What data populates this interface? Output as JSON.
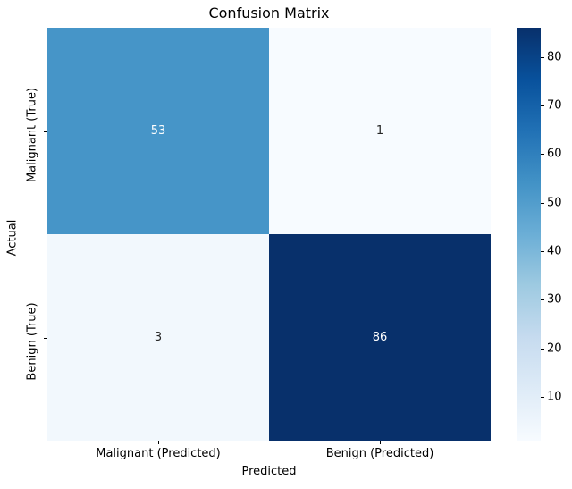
{
  "chart_data": {
    "type": "heatmap",
    "title": "Confusion Matrix",
    "xlabel": "Predicted",
    "ylabel": "Actual",
    "x_categories": [
      "Malignant (Predicted)",
      "Benign (Predicted)"
    ],
    "y_categories": [
      "Malignant (True)",
      "Benign (True)"
    ],
    "values": [
      [
        53,
        1
      ],
      [
        3,
        86
      ]
    ],
    "vmin": 1,
    "vmax": 86,
    "colormap": "Blues",
    "colorbar_ticks": [
      10,
      20,
      30,
      40,
      50,
      60,
      70,
      80
    ],
    "colorbar_position": "right",
    "grid": false,
    "cell_colors": [
      [
        "#4695c8",
        "#f7fbff"
      ],
      [
        "#f2f8fd",
        "#08306b"
      ]
    ],
    "cell_text_colors": [
      [
        "#ffffff",
        "#262626"
      ],
      [
        "#262626",
        "#ffffff"
      ]
    ],
    "colormap_stops": [
      {
        "pos": 0.0,
        "color": "#f7fbff"
      },
      {
        "pos": 0.125,
        "color": "#deebf7"
      },
      {
        "pos": 0.25,
        "color": "#c6dbef"
      },
      {
        "pos": 0.375,
        "color": "#9ecae1"
      },
      {
        "pos": 0.5,
        "color": "#6baed6"
      },
      {
        "pos": 0.625,
        "color": "#4292c6"
      },
      {
        "pos": 0.75,
        "color": "#2171b5"
      },
      {
        "pos": 0.875,
        "color": "#08519c"
      },
      {
        "pos": 1.0,
        "color": "#08306b"
      }
    ]
  }
}
